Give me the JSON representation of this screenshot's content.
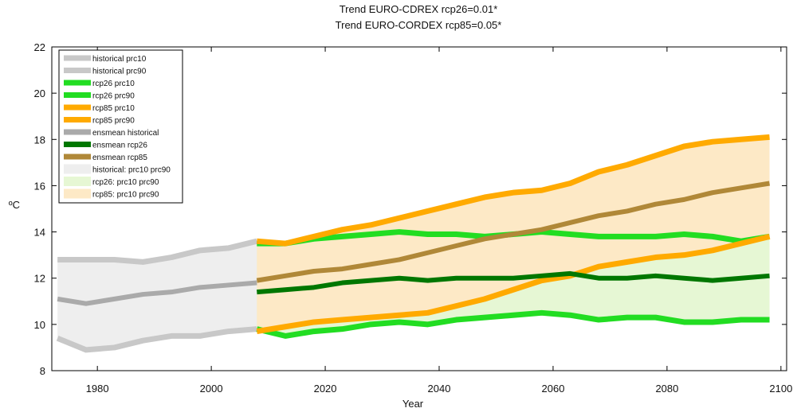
{
  "chart_data": {
    "type": "line",
    "title": "Trend EURO-CDREX rcp26=0.01*",
    "subtitle": "Trend EURO-CORDEX rcp85=0.05*",
    "xlabel": "Year",
    "ylabel": "ºC",
    "xlim": [
      1972,
      2101
    ],
    "ylim": [
      8,
      22
    ],
    "xticks": [
      1980,
      2000,
      2020,
      2040,
      2060,
      2080,
      2100
    ],
    "yticks": [
      8,
      10,
      12,
      14,
      16,
      18,
      20,
      22
    ],
    "legend": "top-left",
    "series": [
      {
        "name": "historical prc10",
        "color": "#c8c8c8",
        "x": [
          1973,
          1978,
          1983,
          1988,
          1993,
          1998,
          2003,
          2008
        ],
        "values": [
          9.4,
          8.9,
          9.0,
          9.3,
          9.5,
          9.5,
          9.7,
          9.8
        ]
      },
      {
        "name": "historical prc90",
        "color": "#c8c8c8",
        "x": [
          1973,
          1978,
          1983,
          1988,
          1993,
          1998,
          2003,
          2008
        ],
        "values": [
          12.8,
          12.8,
          12.8,
          12.7,
          12.9,
          13.2,
          13.3,
          13.6
        ]
      },
      {
        "name": "rcp26 prc10",
        "color": "#22dd22",
        "x": [
          2008,
          2013,
          2018,
          2023,
          2028,
          2033,
          2038,
          2043,
          2048,
          2053,
          2058,
          2063,
          2068,
          2073,
          2078,
          2083,
          2088,
          2093,
          2098
        ],
        "values": [
          9.8,
          9.5,
          9.7,
          9.8,
          10.0,
          10.1,
          10.0,
          10.2,
          10.3,
          10.4,
          10.5,
          10.4,
          10.2,
          10.3,
          10.3,
          10.1,
          10.1,
          10.2,
          10.2
        ]
      },
      {
        "name": "rcp26 prc90",
        "color": "#22dd22",
        "x": [
          2008,
          2013,
          2018,
          2023,
          2028,
          2033,
          2038,
          2043,
          2048,
          2053,
          2058,
          2063,
          2068,
          2073,
          2078,
          2083,
          2088,
          2093,
          2098
        ],
        "values": [
          13.5,
          13.5,
          13.7,
          13.8,
          13.9,
          14.0,
          13.9,
          13.9,
          13.8,
          13.9,
          14.0,
          13.9,
          13.8,
          13.8,
          13.8,
          13.9,
          13.8,
          13.6,
          13.8
        ]
      },
      {
        "name": "rcp85 prc10",
        "color": "#ffaa00",
        "x": [
          2008,
          2013,
          2018,
          2023,
          2028,
          2033,
          2038,
          2043,
          2048,
          2053,
          2058,
          2063,
          2068,
          2073,
          2078,
          2083,
          2088,
          2093,
          2098
        ],
        "values": [
          9.7,
          9.9,
          10.1,
          10.2,
          10.3,
          10.4,
          10.5,
          10.8,
          11.1,
          11.5,
          11.9,
          12.1,
          12.5,
          12.7,
          12.9,
          13.0,
          13.2,
          13.5,
          13.8
        ]
      },
      {
        "name": "rcp85 prc90",
        "color": "#ffaa00",
        "x": [
          2008,
          2013,
          2018,
          2023,
          2028,
          2033,
          2038,
          2043,
          2048,
          2053,
          2058,
          2063,
          2068,
          2073,
          2078,
          2083,
          2088,
          2093,
          2098
        ],
        "values": [
          13.6,
          13.5,
          13.8,
          14.1,
          14.3,
          14.6,
          14.9,
          15.2,
          15.5,
          15.7,
          15.8,
          16.1,
          16.6,
          16.9,
          17.3,
          17.7,
          17.9,
          18.0,
          18.1
        ]
      },
      {
        "name": "ensmean historical",
        "color": "#aaaaaa",
        "x": [
          1973,
          1978,
          1983,
          1988,
          1993,
          1998,
          2003,
          2008
        ],
        "values": [
          11.1,
          10.9,
          11.1,
          11.3,
          11.4,
          11.6,
          11.7,
          11.8
        ]
      },
      {
        "name": "ensmean rcp26",
        "color": "#007700",
        "x": [
          2008,
          2013,
          2018,
          2023,
          2028,
          2033,
          2038,
          2043,
          2048,
          2053,
          2058,
          2063,
          2068,
          2073,
          2078,
          2083,
          2088,
          2093,
          2098
        ],
        "values": [
          11.4,
          11.5,
          11.6,
          11.8,
          11.9,
          12.0,
          11.9,
          12.0,
          12.0,
          12.0,
          12.1,
          12.2,
          12.0,
          12.0,
          12.1,
          12.0,
          11.9,
          12.0,
          12.1
        ]
      },
      {
        "name": "ensmean rcp85",
        "color": "#b08838",
        "x": [
          2008,
          2013,
          2018,
          2023,
          2028,
          2033,
          2038,
          2043,
          2048,
          2053,
          2058,
          2063,
          2068,
          2073,
          2078,
          2083,
          2088,
          2093,
          2098
        ],
        "values": [
          11.9,
          12.1,
          12.3,
          12.4,
          12.6,
          12.8,
          13.1,
          13.4,
          13.7,
          13.9,
          14.1,
          14.4,
          14.7,
          14.9,
          15.2,
          15.4,
          15.7,
          15.9,
          16.1
        ]
      }
    ],
    "bands": [
      {
        "name": "historical: prc10 prc90",
        "color": "#eeeeee",
        "lower": 0,
        "upper": 1
      },
      {
        "name": "rcp26: prc10 prc90",
        "color": "#e6f7d4",
        "lower": 2,
        "upper": 3
      },
      {
        "name": "rcp85: prc10 prc90",
        "color": "#fde9c6",
        "lower": 4,
        "upper": 5
      }
    ]
  }
}
